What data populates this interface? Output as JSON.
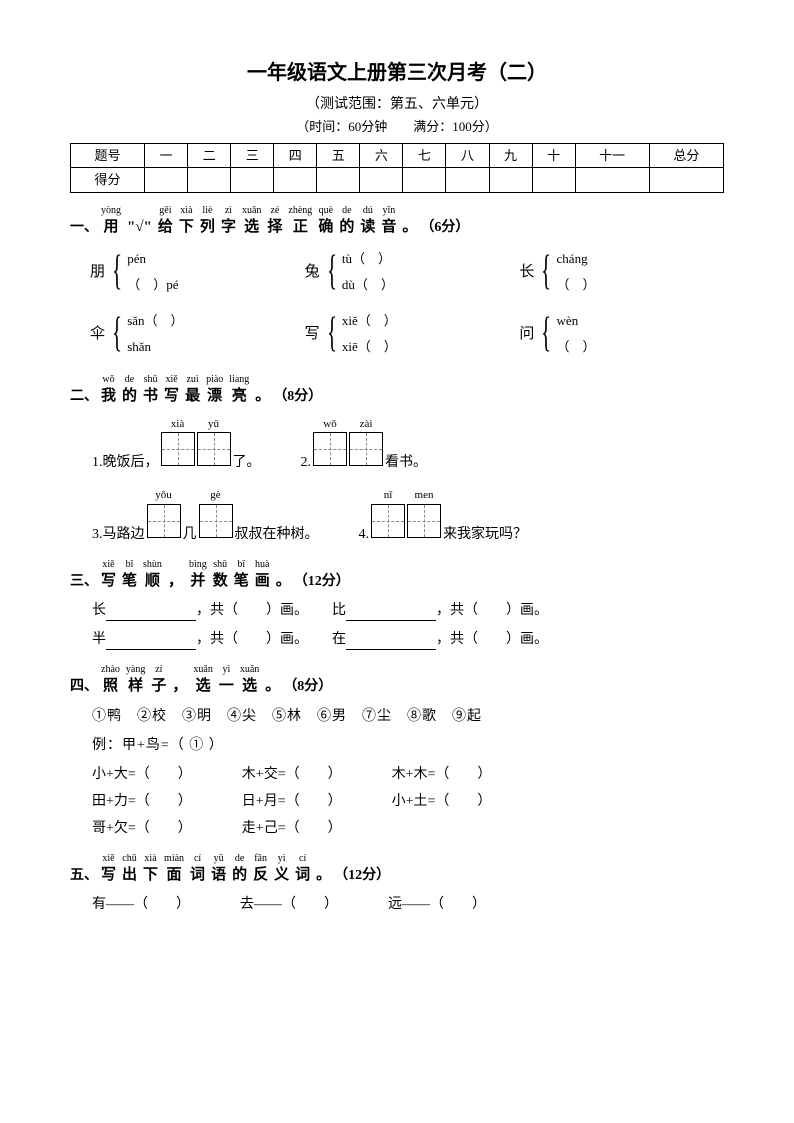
{
  "title": "一年级语文上册第三次月考（二）",
  "subtitle": "（测试范围：第五、六单元）",
  "meta": "（时间：60分钟　　满分：100分）",
  "score_headers": [
    "题号",
    "一",
    "二",
    "三",
    "四",
    "五",
    "六",
    "七",
    "八",
    "九",
    "十",
    "十一",
    "总分"
  ],
  "score_row2": "得分",
  "sections": {
    "s1": {
      "num": "一、",
      "chars": [
        "用",
        "\"√\"",
        "给",
        "下",
        "列",
        "字",
        "选",
        "择",
        "正",
        "确",
        "的",
        "读",
        "音",
        "。"
      ],
      "py": [
        "yòng",
        "",
        "gěi",
        "xià",
        "liè",
        "zì",
        "xuǎn",
        "zé",
        "zhèng",
        "què",
        "de",
        "dú",
        "yīn",
        ""
      ],
      "tail": "（6分）"
    },
    "s2": {
      "num": "二、",
      "chars": [
        "我",
        "的",
        "书",
        "写",
        "最",
        "漂",
        "亮",
        "。"
      ],
      "py": [
        "wǒ",
        "de",
        "shū",
        "xiě",
        "zuì",
        "piào",
        "liang",
        ""
      ],
      "tail": "（8分）"
    },
    "s3": {
      "num": "三、",
      "chars": [
        "写",
        "笔",
        "顺",
        "，",
        "并",
        "数",
        "笔",
        "画",
        "。"
      ],
      "py": [
        "xiě",
        "bǐ",
        "shùn",
        "",
        "bìng",
        "shǔ",
        "bǐ",
        "huà",
        ""
      ],
      "tail": "（12分）"
    },
    "s4": {
      "num": "四、",
      "chars": [
        "照",
        "样",
        "子",
        "，",
        "选",
        "一",
        "选",
        "。"
      ],
      "py": [
        "zhào",
        "yàng",
        "zi",
        "",
        "xuǎn",
        "yi",
        "xuǎn",
        ""
      ],
      "tail": "（8分）"
    },
    "s5": {
      "num": "五、",
      "chars": [
        "写",
        "出",
        "下",
        "面",
        "词",
        "语",
        "的",
        "反",
        "义",
        "词",
        "。"
      ],
      "py": [
        "xiě",
        "chū",
        "xià",
        "miàn",
        "cí",
        "yǔ",
        "de",
        "fǎn",
        "yì",
        "cí",
        ""
      ],
      "tail": "（12分）"
    }
  },
  "q1": [
    {
      "char": "朋",
      "a": "pén",
      "b": "（　）pé"
    },
    {
      "char": "兔",
      "a": "tù（　）",
      "b": "dù（　）"
    },
    {
      "char": "长",
      "a": "cháng",
      "b": "（　）"
    },
    {
      "char": "伞",
      "a": "sǎn（　）",
      "b": "shǎn"
    },
    {
      "char": "写",
      "a": "xiě（　）",
      "b": "xiē（　）"
    },
    {
      "char": "问",
      "a": "wèn",
      "b": "（　）"
    }
  ],
  "q2": [
    {
      "pre": "1.晚饭后，",
      "py": [
        "xià",
        "yǔ"
      ],
      "post": "了。",
      "n": 2
    },
    {
      "pre": "2.",
      "py": [
        "wǒ",
        "zài"
      ],
      "post": "看书。",
      "n": 2
    },
    {
      "pre": "3.马路边",
      "py": [
        "yǒu"
      ],
      "mid": "几",
      "py2": [
        "gè"
      ],
      "post": "叔叔在种树。",
      "n": 1,
      "n2": 1
    },
    {
      "pre": "4.",
      "py": [
        "nǐ",
        "men"
      ],
      "post": "来我家玩吗？",
      "n": 2
    }
  ],
  "q3": [
    {
      "c": "长"
    },
    {
      "c": "比"
    },
    {
      "c": "半"
    },
    {
      "c": "在"
    }
  ],
  "q4_opts": "①鸭　②校　③明　④尖　⑤林　⑥男　⑦尘　⑧歌　⑨起",
  "q4_ex": "例：甲+鸟=（ ① ）",
  "q4_rows": [
    [
      "小+大=（　　）",
      "木+交=（　　）",
      "木+木=（　　）"
    ],
    [
      "田+力=（　　）",
      "日+月=（　　）",
      "小+土=（　　）"
    ],
    [
      "哥+欠=（　　）",
      "走+己=（　　）",
      ""
    ]
  ],
  "q5": [
    "有——（　　）",
    "去——（　　）",
    "远——（　　）"
  ]
}
